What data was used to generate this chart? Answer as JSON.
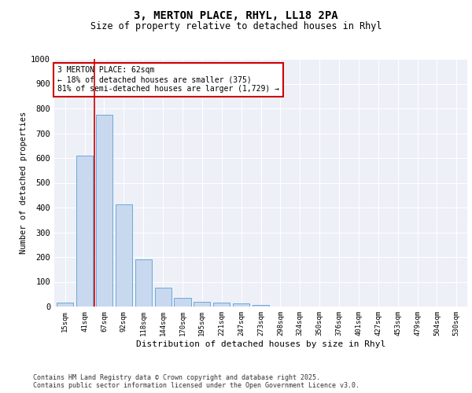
{
  "title1": "3, MERTON PLACE, RHYL, LL18 2PA",
  "title2": "Size of property relative to detached houses in Rhyl",
  "xlabel": "Distribution of detached houses by size in Rhyl",
  "ylabel": "Number of detached properties",
  "categories": [
    "15sqm",
    "41sqm",
    "67sqm",
    "92sqm",
    "118sqm",
    "144sqm",
    "170sqm",
    "195sqm",
    "221sqm",
    "247sqm",
    "273sqm",
    "298sqm",
    "324sqm",
    "350sqm",
    "376sqm",
    "401sqm",
    "427sqm",
    "453sqm",
    "479sqm",
    "504sqm",
    "530sqm"
  ],
  "values": [
    15,
    608,
    775,
    413,
    192,
    76,
    36,
    18,
    15,
    14,
    5,
    0,
    0,
    0,
    0,
    0,
    0,
    0,
    0,
    0,
    0
  ],
  "bar_color": "#c8d8ee",
  "bar_edge_color": "#5a9fd4",
  "reference_line_color": "#cc0000",
  "annotation_line1": "3 MERTON PLACE: 62sqm",
  "annotation_line2": "← 18% of detached houses are smaller (375)",
  "annotation_line3": "81% of semi-detached houses are larger (1,729) →",
  "annotation_box_color": "#cc0000",
  "ylim": [
    0,
    1000
  ],
  "yticks": [
    0,
    100,
    200,
    300,
    400,
    500,
    600,
    700,
    800,
    900,
    1000
  ],
  "background_color": "#eef0f8",
  "grid_color": "#ffffff",
  "footer_line1": "Contains HM Land Registry data © Crown copyright and database right 2025.",
  "footer_line2": "Contains public sector information licensed under the Open Government Licence v3.0."
}
